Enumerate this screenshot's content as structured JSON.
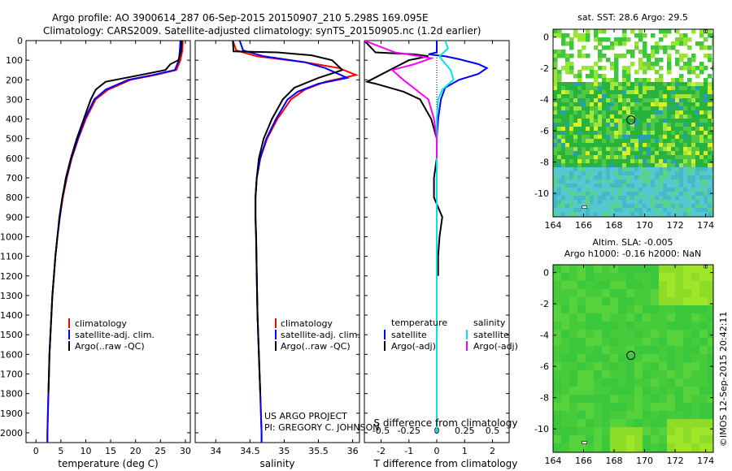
{
  "header": {
    "line1": "Argo profile: AO 3900614_287 06-Sep-2015 20150907_210 5.298S 169.095E",
    "line2": "Climatology: CARS2009. Satellite-adjusted climatology: synTS_20150905.nc (1.2d earlier)"
  },
  "credit": {
    "project": "US ARGO PROJECT",
    "pi": "PI: GREGORY C. JOHNSON"
  },
  "side_label": "©IMOS 12-Sep-2015 20:42:11",
  "legends": {
    "temperature": [
      "climatology",
      "satellite-adj. clim.",
      "Argo(..raw -QC)"
    ],
    "salinity": [
      "climatology",
      "satellite-adj. clim.",
      "Argo(..raw -QC)"
    ],
    "diff_headers": {
      "temperature": "temperature",
      "salinity": "salinity"
    },
    "diff_temperature": [
      "satellite",
      "Argo(-adj)"
    ],
    "diff_salinity": [
      "satellite",
      "Argo(-adj)"
    ]
  },
  "colors": {
    "climatology": "#ff0000",
    "satellite_adj": "#0000ff",
    "argo": "#000000",
    "s_satellite": "#00e5e5",
    "s_argo": "#ff00ff"
  },
  "chart_data": [
    {
      "type": "line",
      "panel": "temperature",
      "xlabel": "temperature (deg C)",
      "ylabel": "",
      "xlim": [
        -2,
        31
      ],
      "ylim": [
        2050,
        0
      ],
      "xticks": [
        0,
        5,
        10,
        15,
        20,
        25,
        30
      ],
      "yticks": [
        0,
        100,
        200,
        300,
        400,
        500,
        600,
        700,
        800,
        900,
        1000,
        1100,
        1200,
        1300,
        1400,
        1500,
        1600,
        1700,
        1800,
        1900,
        2000
      ],
      "y_reversed": true,
      "series": [
        {
          "name": "climatology",
          "points": [
            [
              29.5,
              0
            ],
            [
              29.4,
              50
            ],
            [
              29.0,
              100
            ],
            [
              28.2,
              150
            ],
            [
              24,
              175
            ],
            [
              19,
              200
            ],
            [
              14.5,
              250
            ],
            [
              12,
              300
            ],
            [
              10,
              400
            ],
            [
              8.5,
              500
            ],
            [
              7.2,
              600
            ],
            [
              6.2,
              700
            ],
            [
              5.4,
              800
            ],
            [
              4.8,
              900
            ],
            [
              4.3,
              1000
            ],
            [
              3.9,
              1100
            ],
            [
              3.6,
              1200
            ],
            [
              3.3,
              1300
            ],
            [
              3.1,
              1400
            ],
            [
              2.9,
              1500
            ],
            [
              2.7,
              1600
            ],
            [
              2.6,
              1700
            ],
            [
              2.5,
              1800
            ],
            [
              2.4,
              1900
            ],
            [
              2.3,
              2000
            ],
            [
              2.3,
              2050
            ]
          ]
        },
        {
          "name": "satellite-adj. clim.",
          "points": [
            [
              29.0,
              0
            ],
            [
              28.9,
              50
            ],
            [
              28.7,
              100
            ],
            [
              27.9,
              150
            ],
            [
              23.5,
              175
            ],
            [
              18.5,
              200
            ],
            [
              14,
              250
            ],
            [
              11.7,
              300
            ],
            [
              9.8,
              400
            ],
            [
              8.4,
              500
            ],
            [
              7.1,
              600
            ],
            [
              6.1,
              700
            ],
            [
              5.3,
              800
            ],
            [
              4.8,
              900
            ],
            [
              4.3,
              1000
            ],
            [
              3.9,
              1100
            ],
            [
              3.6,
              1200
            ],
            [
              3.3,
              1300
            ],
            [
              3.1,
              1400
            ],
            [
              2.9,
              1500
            ],
            [
              2.7,
              1600
            ],
            [
              2.6,
              1700
            ],
            [
              2.5,
              1800
            ],
            [
              2.4,
              1900
            ],
            [
              2.3,
              2000
            ],
            [
              2.3,
              2050
            ]
          ]
        },
        {
          "name": "Argo(..raw -QC)",
          "points": [
            [
              29.3,
              0
            ],
            [
              29.1,
              60
            ],
            [
              28.6,
              100
            ],
            [
              27,
              120
            ],
            [
              26,
              150
            ],
            [
              21,
              175
            ],
            [
              14,
              210
            ],
            [
              12,
              250
            ],
            [
              11,
              300
            ],
            [
              9.6,
              400
            ],
            [
              8.2,
              500
            ],
            [
              7.0,
              600
            ],
            [
              6.0,
              700
            ],
            [
              5.3,
              800
            ],
            [
              4.7,
              900
            ],
            [
              4.3,
              1000
            ],
            [
              3.9,
              1100
            ],
            [
              3.6,
              1200
            ],
            [
              3.3,
              1300
            ],
            [
              3.1,
              1400
            ],
            [
              2.9,
              1500
            ],
            [
              2.7,
              1600
            ],
            [
              2.6,
              1700
            ],
            [
              2.5,
              1800
            ]
          ]
        }
      ]
    },
    {
      "type": "line",
      "panel": "salinity",
      "xlabel": "salinity",
      "ylabel": "",
      "xlim": [
        33.7,
        36.1
      ],
      "ylim": [
        2050,
        0
      ],
      "xticks": [
        34,
        34.5,
        35,
        35.5,
        36
      ],
      "xticklabels": [
        "34",
        "34.5",
        "35",
        "35.5",
        "36"
      ],
      "y_reversed": true,
      "series": [
        {
          "name": "climatology",
          "points": [
            [
              34.25,
              0
            ],
            [
              34.3,
              50
            ],
            [
              34.6,
              80
            ],
            [
              35.3,
              110
            ],
            [
              35.8,
              140
            ],
            [
              36.05,
              175
            ],
            [
              35.6,
              210
            ],
            [
              35.3,
              250
            ],
            [
              35.1,
              300
            ],
            [
              34.9,
              400
            ],
            [
              34.75,
              500
            ],
            [
              34.65,
              600
            ],
            [
              34.6,
              700
            ],
            [
              34.58,
              800
            ],
            [
              34.58,
              900
            ],
            [
              34.59,
              1000
            ],
            [
              34.6,
              1200
            ],
            [
              34.61,
              1400
            ],
            [
              34.63,
              1600
            ],
            [
              34.65,
              1800
            ],
            [
              34.67,
              2000
            ],
            [
              34.67,
              2050
            ]
          ]
        },
        {
          "name": "satellite-adj. clim.",
          "points": [
            [
              34.35,
              0
            ],
            [
              34.4,
              50
            ],
            [
              34.7,
              80
            ],
            [
              35.3,
              110
            ],
            [
              35.6,
              140
            ],
            [
              35.92,
              190
            ],
            [
              35.5,
              220
            ],
            [
              35.2,
              260
            ],
            [
              35.05,
              300
            ],
            [
              34.88,
              400
            ],
            [
              34.74,
              500
            ],
            [
              34.65,
              600
            ],
            [
              34.6,
              700
            ],
            [
              34.58,
              800
            ],
            [
              34.58,
              900
            ],
            [
              34.59,
              1000
            ],
            [
              34.6,
              1200
            ],
            [
              34.61,
              1400
            ],
            [
              34.63,
              1600
            ],
            [
              34.65,
              1800
            ],
            [
              34.67,
              2000
            ],
            [
              34.67,
              2050
            ]
          ]
        },
        {
          "name": "Argo(..raw -QC)",
          "points": [
            [
              34.25,
              0
            ],
            [
              34.26,
              55
            ],
            [
              34.9,
              60
            ],
            [
              35.4,
              75
            ],
            [
              35.7,
              100
            ],
            [
              35.85,
              150
            ],
            [
              35.5,
              190
            ],
            [
              35.15,
              240
            ],
            [
              34.98,
              300
            ],
            [
              34.82,
              400
            ],
            [
              34.7,
              500
            ],
            [
              34.63,
              600
            ],
            [
              34.6,
              700
            ],
            [
              34.58,
              800
            ],
            [
              34.58,
              900
            ],
            [
              34.59,
              1000
            ],
            [
              34.6,
              1200
            ],
            [
              34.61,
              1400
            ],
            [
              34.63,
              1600
            ],
            [
              34.65,
              1800
            ]
          ]
        }
      ]
    },
    {
      "type": "line",
      "panel": "difference",
      "xlabel_top": "S difference from climatology",
      "xlabel": "T difference from climatology",
      "xlim": [
        -2.6,
        2.6
      ],
      "ylim": [
        2050,
        0
      ],
      "xticks": [
        -2,
        -1,
        0,
        1,
        2
      ],
      "x2ticks": [
        -0.5,
        -0.25,
        0,
        0.25,
        0.5
      ],
      "x2ticklabels": [
        "-0.5",
        "-0.25",
        "0",
        "0.25",
        "0.5"
      ],
      "y_reversed": true,
      "series": [
        {
          "name": "T satellite",
          "points": [
            [
              0,
              0
            ],
            [
              0,
              60
            ],
            [
              -0.3,
              70
            ],
            [
              0.3,
              80
            ],
            [
              0.8,
              95
            ],
            [
              1.5,
              120
            ],
            [
              1.8,
              140
            ],
            [
              1.5,
              170
            ],
            [
              0.8,
              200
            ],
            [
              0.3,
              240
            ],
            [
              0.15,
              300
            ],
            [
              0.05,
              400
            ],
            [
              0,
              500
            ],
            [
              0,
              2000
            ]
          ]
        },
        {
          "name": "T Argo(-adj)",
          "points": [
            [
              -2.6,
              0
            ],
            [
              -2.2,
              60
            ],
            [
              -0.8,
              70
            ],
            [
              -0.3,
              80
            ],
            [
              -1.0,
              100
            ],
            [
              -2.5,
              210
            ],
            [
              -2.2,
              220
            ],
            [
              -1.2,
              260
            ],
            [
              -0.6,
              300
            ],
            [
              -0.2,
              400
            ],
            [
              0,
              500
            ],
            [
              0,
              600
            ],
            [
              -0.1,
              700
            ],
            [
              -0.1,
              800
            ],
            [
              0.2,
              900
            ],
            [
              0.1,
              1000
            ],
            [
              0.05,
              1100
            ],
            [
              0.05,
              1200
            ]
          ]
        },
        {
          "name": "S satellite",
          "points": [
            [
              0.3,
              0
            ],
            [
              0.4,
              40
            ],
            [
              0.1,
              80
            ],
            [
              0.2,
              100
            ],
            [
              0.5,
              150
            ],
            [
              0.6,
              200
            ],
            [
              0.2,
              250
            ],
            [
              0.05,
              300
            ],
            [
              0,
              400
            ],
            [
              0,
              2000
            ]
          ]
        },
        {
          "name": "S Argo(-adj)",
          "points": [
            [
              -2.6,
              0
            ],
            [
              -1.5,
              60
            ],
            [
              -0.6,
              80
            ],
            [
              -0.2,
              90
            ],
            [
              -0.8,
              120
            ],
            [
              -1.6,
              150
            ],
            [
              -1.2,
              200
            ],
            [
              -0.3,
              300
            ],
            [
              -0.1,
              400
            ],
            [
              0,
              500
            ],
            [
              0,
              600
            ]
          ]
        }
      ]
    },
    {
      "type": "heatmap",
      "panel": "sst_map",
      "title": "sat. SST: 28.6  Argo: 29.5",
      "xlim": [
        164,
        174.5
      ],
      "ylim": [
        -11.5,
        0.5
      ],
      "xticks": [
        164,
        166,
        168,
        170,
        172,
        174
      ],
      "yticks": [
        0,
        -2,
        -4,
        -6,
        -8,
        -10
      ],
      "marker": [
        169.1,
        -5.3
      ]
    },
    {
      "type": "heatmap",
      "panel": "sla_map",
      "title": "Altim. SLA: -0.005",
      "subtitle": "Argo h1000: -0.16  h2000: NaN",
      "xlim": [
        164,
        174.5
      ],
      "ylim": [
        -11.5,
        0.5
      ],
      "xticks": [
        164,
        166,
        168,
        170,
        172,
        174
      ],
      "yticks": [
        0,
        -2,
        -4,
        -6,
        -8,
        -10
      ],
      "marker": [
        169.1,
        -5.3
      ]
    }
  ]
}
